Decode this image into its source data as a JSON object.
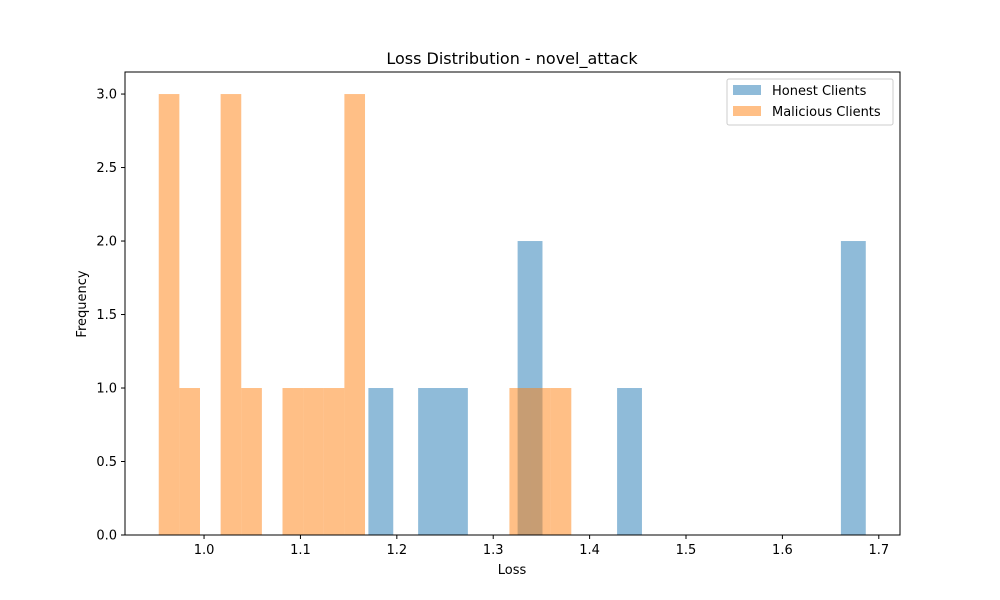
{
  "chart_data": {
    "type": "bar",
    "title": "Loss Distribution - novel_attack",
    "xlabel": "Loss",
    "ylabel": "Frequency",
    "xlim": [
      0.918,
      1.722
    ],
    "ylim": [
      0,
      3.15
    ],
    "x_ticks": [
      "1.0",
      "1.1",
      "1.2",
      "1.3",
      "1.4",
      "1.5",
      "1.6",
      "1.7"
    ],
    "x_tick_values": [
      1.0,
      1.1,
      1.2,
      1.3,
      1.4,
      1.5,
      1.6,
      1.7
    ],
    "y_ticks": [
      "0.0",
      "0.5",
      "1.0",
      "1.5",
      "2.0",
      "2.5",
      "3.0"
    ],
    "y_tick_values": [
      0.0,
      0.5,
      1.0,
      1.5,
      2.0,
      2.5,
      3.0
    ],
    "grid": false,
    "legend_position": "top-right",
    "series": [
      {
        "name": "Honest Clients",
        "color": "#1f77b4",
        "opacity": 0.5,
        "bars": [
          {
            "x0": 1.1705,
            "x1": 1.1963,
            "value": 1
          },
          {
            "x0": 1.2221,
            "x1": 1.2479,
            "value": 1
          },
          {
            "x0": 1.2479,
            "x1": 1.2737,
            "value": 1
          },
          {
            "x0": 1.3253,
            "x1": 1.3511,
            "value": 2
          },
          {
            "x0": 1.4285,
            "x1": 1.4543,
            "value": 1
          },
          {
            "x0": 1.6607,
            "x1": 1.6865,
            "value": 2
          }
        ]
      },
      {
        "name": "Malicious Clients",
        "color": "#ff7f0e",
        "opacity": 0.5,
        "bars": [
          {
            "x0": 0.953,
            "x1": 0.9744,
            "value": 3
          },
          {
            "x0": 0.9744,
            "x1": 0.9958,
            "value": 1
          },
          {
            "x0": 1.0172,
            "x1": 1.0386,
            "value": 3
          },
          {
            "x0": 1.0386,
            "x1": 1.06,
            "value": 1
          },
          {
            "x0": 1.0814,
            "x1": 1.1028,
            "value": 1
          },
          {
            "x0": 1.1028,
            "x1": 1.1242,
            "value": 1
          },
          {
            "x0": 1.1242,
            "x1": 1.1456,
            "value": 1
          },
          {
            "x0": 1.1456,
            "x1": 1.167,
            "value": 3
          },
          {
            "x0": 1.3168,
            "x1": 1.3382,
            "value": 1
          },
          {
            "x0": 1.3382,
            "x1": 1.3596,
            "value": 1
          },
          {
            "x0": 1.3596,
            "x1": 1.381,
            "value": 1
          }
        ]
      }
    ]
  }
}
